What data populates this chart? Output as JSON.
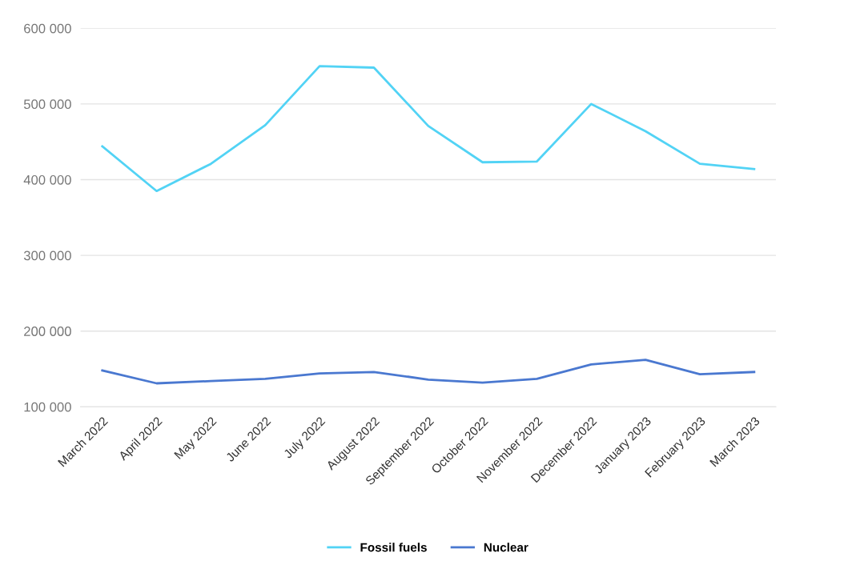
{
  "chart_data": {
    "type": "line",
    "categories": [
      "March 2022",
      "April 2022",
      "May 2022",
      "June 2022",
      "July 2022",
      "August 2022",
      "September 2022",
      "October 2022",
      "November 2022",
      "December 2022",
      "January 2023",
      "February 2023",
      "March 2023"
    ],
    "series": [
      {
        "name": "Fossil fuels",
        "color": "#52d3f5",
        "values": [
          444000,
          385000,
          421000,
          472000,
          550000,
          548000,
          471000,
          423000,
          424000,
          500000,
          464000,
          421000,
          414000
        ]
      },
      {
        "name": "Nuclear",
        "color": "#4a78d0",
        "values": [
          148000,
          131000,
          134000,
          137000,
          144000,
          146000,
          136000,
          132000,
          137000,
          156000,
          162000,
          143000,
          146000
        ]
      }
    ],
    "ylim": [
      100000,
      600000
    ],
    "yticks": [
      {
        "value": 100000,
        "label": "100 000"
      },
      {
        "value": 200000,
        "label": "200 000"
      },
      {
        "value": 300000,
        "label": "300 000"
      },
      {
        "value": 400000,
        "label": "400 000"
      },
      {
        "value": 500000,
        "label": "500 000"
      },
      {
        "value": 600000,
        "label": "600 000"
      }
    ],
    "grid": "y",
    "legend": "bottom",
    "marker": "none",
    "line_style": "solid"
  }
}
